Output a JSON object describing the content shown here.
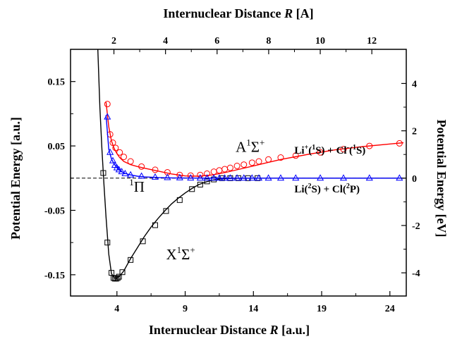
{
  "chart_data": {
    "type": "line",
    "xlabel": {
      "prefix": "Internuclear Distance ",
      "var": "R",
      "unit": " [a.u.]"
    },
    "x2label": {
      "prefix": "Internuclear Distance ",
      "var": "R",
      "unit": " [A]"
    },
    "ylabel": "Potential Energy [a.u.]",
    "y2label": "Potential Energy [eV]",
    "xlim": [
      0.6,
      25.2
    ],
    "ylim": [
      -0.183,
      0.2
    ],
    "xticks": [
      4,
      9,
      14,
      19,
      24
    ],
    "x2ticks": [
      2,
      4,
      6,
      8,
      10,
      12
    ],
    "yticks": [
      -0.15,
      -0.05,
      0.05,
      0.15
    ],
    "y2ticks": [
      -4,
      -2,
      0,
      2,
      4
    ],
    "y2_conversion_ev_per_au": 27.2114,
    "x2_conversion_angstrom_per_au": 0.529177,
    "reference_line_y": 0,
    "series": [
      {
        "color": "#000000",
        "marker": "square",
        "line_x": [
          2.6,
          2.75,
          2.9,
          3.05,
          3.2,
          3.4,
          3.6,
          3.8,
          4.0,
          4.2,
          4.5,
          5.0,
          5.5,
          6.0,
          6.5,
          7.0,
          7.5,
          8.0,
          8.5,
          9.0,
          9.5,
          10.0,
          10.5,
          11.0,
          11.5,
          12.0,
          12.5,
          13.0,
          14.0,
          15.0,
          17.0,
          20.0,
          25.0
        ],
        "line_y": [
          0.2,
          0.11,
          0.045,
          -0.01,
          -0.06,
          -0.118,
          -0.148,
          -0.155,
          -0.155,
          -0.152,
          -0.144,
          -0.125,
          -0.108,
          -0.091,
          -0.076,
          -0.063,
          -0.051,
          -0.04,
          -0.031,
          -0.023,
          -0.016,
          -0.01,
          -0.006,
          -0.003,
          -0.0015,
          -0.0007,
          -0.0003,
          -0.0001,
          0,
          0,
          0,
          0,
          0
        ],
        "points_x": [
          3.0,
          3.3,
          3.6,
          3.75,
          3.85,
          3.95,
          4.05,
          4.15,
          4.4,
          5.0,
          5.9,
          6.8,
          7.6,
          8.6,
          9.5,
          10.1,
          10.6,
          11.1,
          11.7,
          12.3,
          12.9,
          13.6,
          14.3
        ],
        "points_y": [
          0.008,
          -0.1,
          -0.147,
          -0.155,
          -0.156,
          -0.156,
          -0.155,
          -0.153,
          -0.146,
          -0.127,
          -0.098,
          -0.073,
          -0.051,
          -0.034,
          -0.017,
          -0.01,
          -0.005,
          -0.002,
          0,
          0,
          0,
          0,
          0
        ]
      },
      {
        "color": "#ff0000",
        "marker": "circle",
        "line_x": [
          3.2,
          3.4,
          3.6,
          3.8,
          4.0,
          4.2,
          4.5,
          5.0,
          5.5,
          6.0,
          7.0,
          8.0,
          9.0,
          10.0,
          11.0,
          12.0,
          13.0,
          14.0,
          15.0,
          16.0,
          18.0,
          20.0,
          22.0,
          24.0,
          25.0
        ],
        "line_y": [
          0.118,
          0.08,
          0.058,
          0.046,
          0.038,
          0.032,
          0.026,
          0.021,
          0.018,
          0.0155,
          0.011,
          0.0065,
          0.0035,
          0.003,
          0.005,
          0.009,
          0.014,
          0.019,
          0.024,
          0.029,
          0.037,
          0.044,
          0.049,
          0.053,
          0.055
        ],
        "points_x": [
          3.3,
          3.5,
          3.7,
          3.9,
          4.2,
          4.5,
          5.0,
          5.8,
          6.8,
          7.7,
          8.6,
          9.4,
          10.1,
          10.6,
          11.1,
          11.5,
          11.9,
          12.3,
          12.8,
          13.3,
          13.9,
          14.4,
          15.1,
          16.0,
          17.1,
          18.9,
          20.6,
          22.5,
          24.7
        ],
        "points_y": [
          0.115,
          0.068,
          0.055,
          0.047,
          0.04,
          0.033,
          0.026,
          0.018,
          0.013,
          0.009,
          0.005,
          0.004,
          0.005,
          0.007,
          0.01,
          0.012,
          0.014,
          0.016,
          0.019,
          0.021,
          0.024,
          0.026,
          0.029,
          0.032,
          0.035,
          0.04,
          0.045,
          0.05,
          0.054
        ]
      },
      {
        "color": "#0000ff",
        "marker": "triangle",
        "line_x": [
          3.2,
          3.4,
          3.6,
          3.8,
          4.0,
          4.2,
          4.5,
          5.0,
          5.5,
          6.0,
          7.0,
          8.0,
          9.0,
          10.0,
          12.0,
          14.0,
          18.0,
          25.0
        ],
        "line_y": [
          0.098,
          0.045,
          0.03,
          0.022,
          0.016,
          0.012,
          0.008,
          0.005,
          0.003,
          0.002,
          0.001,
          0.0004,
          0.0002,
          0.0001,
          0,
          0,
          0,
          0
        ],
        "points_x": [
          3.3,
          3.5,
          3.7,
          3.85,
          4.0,
          4.15,
          4.35,
          4.6,
          5.0,
          5.8,
          6.8,
          7.7,
          8.6,
          9.4,
          10.1,
          10.6,
          11.1,
          11.5,
          11.9,
          12.3,
          12.8,
          13.3,
          13.9,
          14.4,
          15.1,
          16.0,
          17.1,
          18.9,
          20.6,
          22.5,
          24.7
        ],
        "points_y": [
          0.095,
          0.04,
          0.027,
          0.02,
          0.016,
          0.013,
          0.01,
          0.007,
          0.005,
          0.003,
          0.0015,
          0.0008,
          0.0005,
          0.0002,
          0,
          0,
          0,
          0,
          0,
          0,
          0,
          0,
          0,
          0,
          0,
          0,
          0,
          0,
          0,
          0,
          0
        ]
      }
    ],
    "annotations": {
      "A_state": {
        "base": "A",
        "pre_sup": "1",
        "main": "Σ",
        "post_sup": "+",
        "x": 12.7,
        "y": 0.041
      },
      "X_state": {
        "base": "X",
        "pre_sup": "1",
        "main": "Σ",
        "post_sup": "+",
        "x": 7.6,
        "y": -0.126
      },
      "Pi_state": {
        "pre_sup": "1",
        "main": "Π",
        "x": 4.9,
        "y": -0.021
      },
      "ionic_limit": {
        "p1": "Li",
        "p1_sup": "+",
        "p2": "(",
        "p2_sup": "1",
        "p3": "S) + Cl",
        "p3_sup": "-",
        "p4": "(",
        "p4_sup": "1",
        "p5": "S)",
        "x": 17.0,
        "y": 0.038
      },
      "covalent_limit": {
        "p1": "Li(",
        "p1_sup": "2",
        "p2": "S) + Cl(",
        "p2_sup": "2",
        "p3": "P)",
        "x": 17.0,
        "y": -0.022
      }
    }
  }
}
